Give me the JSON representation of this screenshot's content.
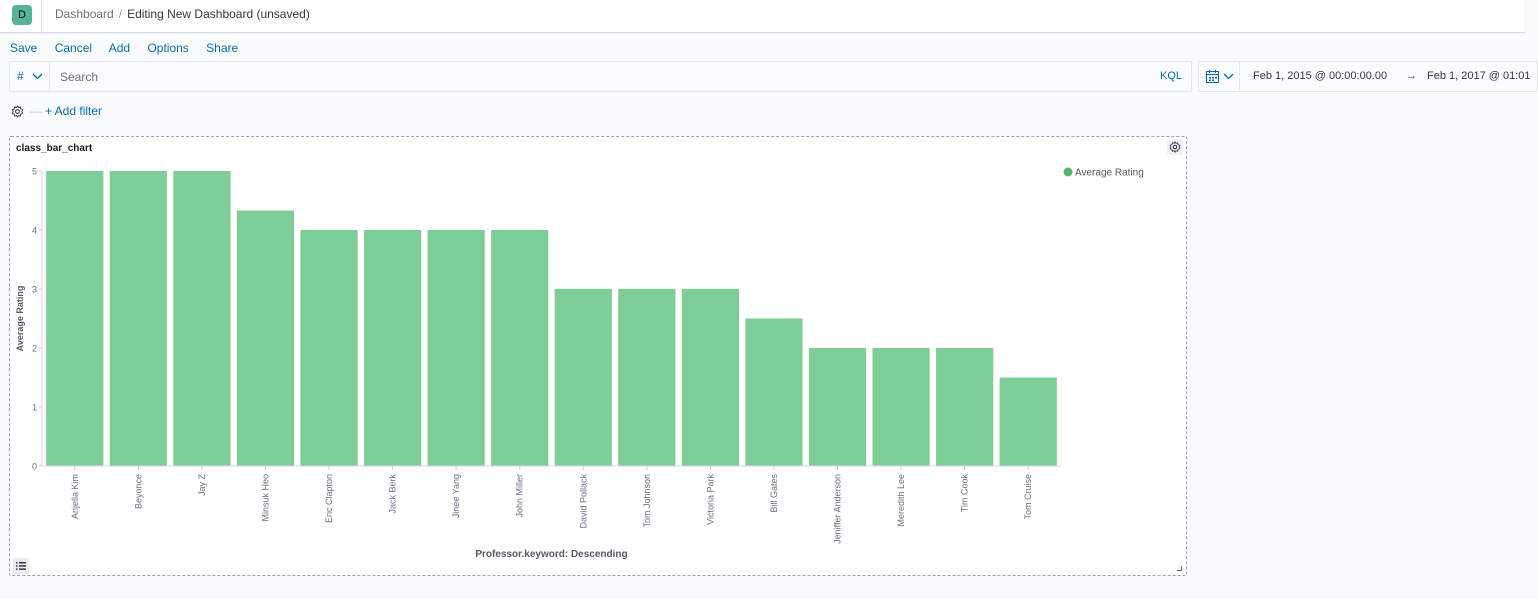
{
  "app": {
    "logo_letter": "D"
  },
  "breadcrumb": {
    "parent": "Dashboard",
    "current": "Editing New Dashboard (unsaved)"
  },
  "menu": {
    "save": "Save",
    "cancel": "Cancel",
    "add": "Add",
    "options": "Options",
    "share": "Share"
  },
  "query_bar": {
    "language_symbol": "#",
    "placeholder": "Search",
    "language": "KQL"
  },
  "date_picker": {
    "start": "Feb 1, 2015 @ 00:00:00.00",
    "arrow": "→",
    "end": "Feb 1, 2017 @ 01:01"
  },
  "filters": {
    "add_filter": "+ Add filter"
  },
  "panel": {
    "title": "class_bar_chart"
  },
  "chart_data": {
    "type": "bar",
    "title": "class_bar_chart",
    "xlabel": "Professor.keyword: Descending",
    "ylabel": "Average Rating",
    "ylim": [
      0,
      5
    ],
    "yticks": [
      0,
      1,
      2,
      3,
      4,
      5
    ],
    "categories": [
      "Anjella Kim",
      "Beyonce",
      "Jay Z",
      "Minsuk Heo",
      "Eric Clapton",
      "Jack Berk",
      "Jinee Yang",
      "John Miller",
      "David Pollack",
      "Tom Johnson",
      "Victoria Park",
      "Bill Gates",
      "Jeniffer Anderson",
      "Meredith Lee",
      "Tim Cook",
      "Tom Cruise"
    ],
    "series": [
      {
        "name": "Average Rating",
        "values": [
          5,
          5,
          5,
          4.33,
          4,
          4,
          4,
          4,
          3,
          3,
          3,
          2.5,
          2,
          2,
          2,
          1.5
        ]
      }
    ],
    "color": "#7dcd96",
    "legend_position": "top-right",
    "grid": false
  }
}
